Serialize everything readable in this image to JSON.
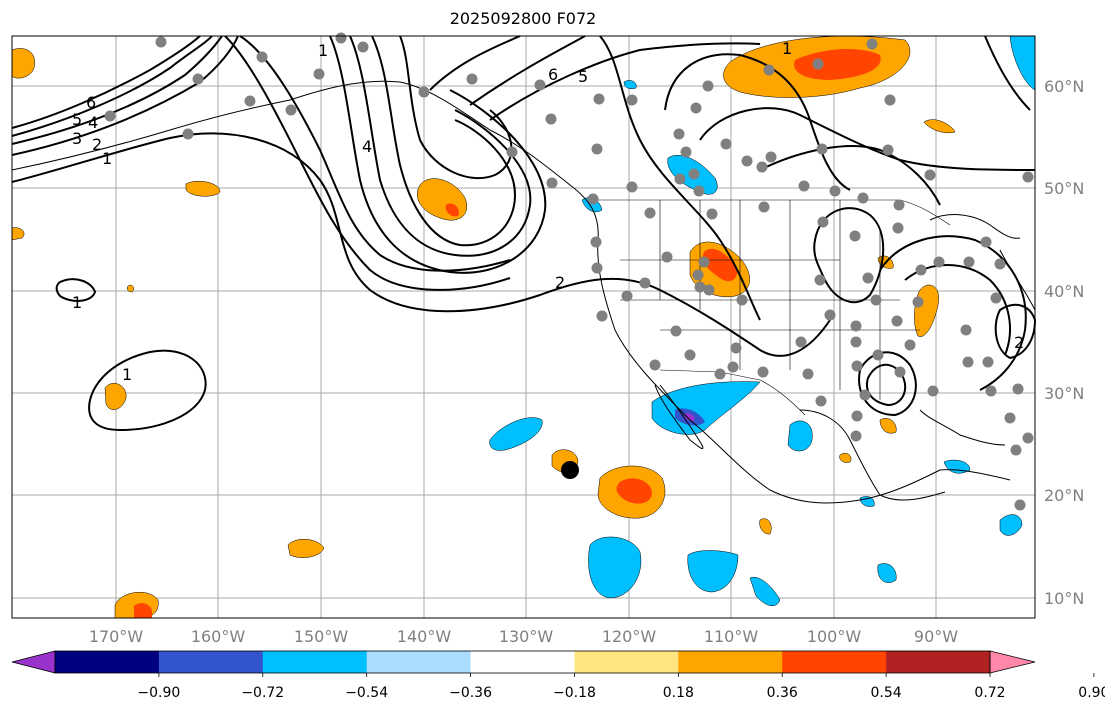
{
  "title": "2025092800 F072",
  "map": {
    "lat_labels": [
      "60°N",
      "50°N",
      "40°N",
      "30°N",
      "20°N",
      "10°N"
    ],
    "lon_labels": [
      "170°W",
      "160°W",
      "150°W",
      "140°W",
      "130°W",
      "120°W",
      "110°W",
      "100°W",
      "90°W"
    ],
    "contour_labels": [
      "1",
      "2",
      "3",
      "4",
      "5",
      "6",
      "1",
      "2",
      "4",
      "6",
      "5",
      "1",
      "2",
      "1",
      "1"
    ],
    "colors": {
      "grid": "#aaaaaa",
      "axis_label": "#808080",
      "coast": "#000000",
      "station": "#808080"
    }
  },
  "colorbar": {
    "ticks": [
      "−0.90",
      "−0.72",
      "−0.54",
      "−0.36",
      "−0.18",
      "0.18",
      "0.36",
      "0.54",
      "0.72",
      "0.90"
    ],
    "colors": [
      "#9933cc",
      "#000080",
      "#3355cc",
      "#00bfff",
      "#aaddff",
      "#ffffff",
      "#ffe680",
      "#ffa500",
      "#ff4500",
      "#b22222",
      "#ff88aa"
    ]
  }
}
